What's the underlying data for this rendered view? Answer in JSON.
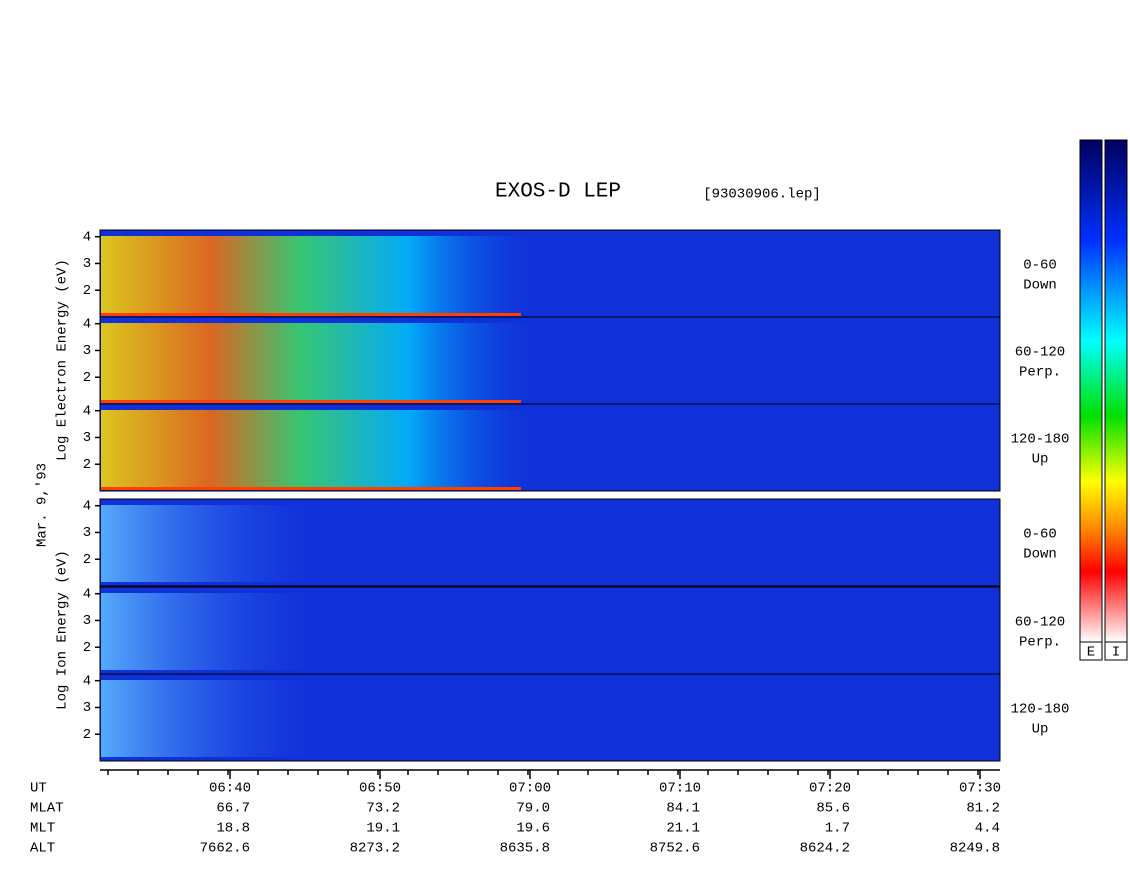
{
  "title": "EXOS-D LEP",
  "file": "[93030906.lep]",
  "date": "Mar. 9,'93",
  "electron_axis": "Log  Electron  Energy (eV)",
  "ion_axis": "Log  Ion  Energy (eV)",
  "yticks": [
    2,
    3,
    4
  ],
  "panels": [
    {
      "label": [
        "0-60",
        "Down"
      ]
    },
    {
      "label": [
        "60-120",
        "Perp."
      ]
    },
    {
      "label": [
        "120-180",
        "Up"
      ]
    },
    {
      "label": [
        "0-60",
        "Down"
      ]
    },
    {
      "label": [
        "60-120",
        "Perp."
      ]
    },
    {
      "label": [
        "120-180",
        "Up"
      ]
    }
  ],
  "colorbar_labels": [
    "E",
    "I"
  ],
  "ephemeris": {
    "rows": [
      [
        "UT",
        "06:40",
        "06:50",
        "07:00",
        "07:10",
        "07:20",
        "07:30"
      ],
      [
        "MLAT",
        "66.7",
        "73.2",
        "79.0",
        "84.1",
        "85.6",
        "81.2"
      ],
      [
        "MLT",
        "18.8",
        "19.1",
        "19.6",
        "21.1",
        "1.7",
        "4.4"
      ],
      [
        "ALT",
        "7662.6",
        "8273.2",
        "8635.8",
        "8752.6",
        "8624.2",
        "8249.8"
      ]
    ]
  }
}
